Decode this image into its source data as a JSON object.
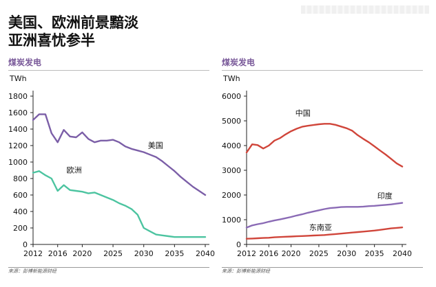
{
  "headline": {
    "line1": "美国、欧洲前景黯淡",
    "line2": "亚洲喜忧参半"
  },
  "chart_data": [
    {
      "type": "line",
      "title": "煤炭发电",
      "ylabel": "TWh",
      "ylim": [
        0,
        1800
      ],
      "yticks": [
        0,
        200,
        400,
        600,
        800,
        1000,
        1200,
        1400,
        1600,
        1800
      ],
      "xlim": [
        2012,
        2040
      ],
      "xticks": [
        2012,
        2016,
        2020,
        2025,
        2030,
        2035,
        2040
      ],
      "grid": false,
      "source": "来源：彭博新能源财经",
      "series": [
        {
          "name": "美国",
          "color": "#7b5ea7",
          "x": [
            2012,
            2013,
            2014,
            2015,
            2016,
            2017,
            2018,
            2019,
            2020,
            2021,
            2022,
            2023,
            2024,
            2025,
            2026,
            2027,
            2028,
            2029,
            2030,
            2031,
            2032,
            2033,
            2034,
            2035,
            2036,
            2037,
            2038,
            2039,
            2040
          ],
          "values": [
            1510,
            1580,
            1580,
            1350,
            1240,
            1390,
            1310,
            1300,
            1360,
            1280,
            1240,
            1260,
            1260,
            1270,
            1240,
            1190,
            1160,
            1140,
            1120,
            1090,
            1060,
            1010,
            950,
            890,
            820,
            760,
            700,
            650,
            600
          ]
        },
        {
          "name": "欧洲",
          "color": "#4cc4a0",
          "x": [
            2012,
            2013,
            2014,
            2015,
            2016,
            2017,
            2018,
            2019,
            2020,
            2021,
            2022,
            2023,
            2024,
            2025,
            2026,
            2027,
            2028,
            2029,
            2030,
            2031,
            2032,
            2033,
            2034,
            2035,
            2036,
            2037,
            2038,
            2039,
            2040
          ],
          "values": [
            870,
            890,
            840,
            800,
            650,
            720,
            660,
            650,
            640,
            620,
            630,
            600,
            570,
            540,
            500,
            470,
            430,
            360,
            200,
            160,
            120,
            110,
            100,
            90,
            90,
            90,
            90,
            90,
            90
          ]
        }
      ]
    },
    {
      "type": "line",
      "title": "煤炭发电",
      "ylabel": "TWh",
      "ylim": [
        0,
        6000
      ],
      "yticks": [
        0,
        1000,
        2000,
        3000,
        4000,
        5000,
        6000
      ],
      "xlim": [
        2012,
        2040
      ],
      "xticks": [
        2012,
        2016,
        2020,
        2025,
        2030,
        2035,
        2040
      ],
      "grid": false,
      "source": "来源：彭博新能源财经",
      "series": [
        {
          "name": "中国",
          "color": "#d0453a",
          "x": [
            2012,
            2013,
            2014,
            2015,
            2016,
            2017,
            2018,
            2019,
            2020,
            2021,
            2022,
            2023,
            2024,
            2025,
            2026,
            2027,
            2028,
            2029,
            2030,
            2031,
            2032,
            2033,
            2034,
            2035,
            2036,
            2037,
            2038,
            2039,
            2040
          ],
          "values": [
            3720,
            4050,
            4020,
            3880,
            4000,
            4200,
            4300,
            4450,
            4580,
            4680,
            4760,
            4800,
            4830,
            4860,
            4880,
            4880,
            4840,
            4770,
            4700,
            4600,
            4420,
            4270,
            4130,
            3970,
            3800,
            3640,
            3460,
            3280,
            3150
          ]
        },
        {
          "name": "印度",
          "color": "#8a6ab5",
          "x": [
            2012,
            2013,
            2014,
            2015,
            2016,
            2017,
            2018,
            2019,
            2020,
            2021,
            2022,
            2023,
            2024,
            2025,
            2026,
            2027,
            2028,
            2029,
            2030,
            2031,
            2032,
            2033,
            2034,
            2035,
            2036,
            2037,
            2038,
            2039,
            2040
          ],
          "values": [
            680,
            770,
            820,
            860,
            920,
            970,
            1010,
            1060,
            1110,
            1170,
            1220,
            1280,
            1330,
            1380,
            1430,
            1470,
            1490,
            1510,
            1520,
            1520,
            1520,
            1530,
            1550,
            1560,
            1580,
            1600,
            1620,
            1650,
            1680
          ]
        },
        {
          "name": "东南亚",
          "color": "#d0453a",
          "x": [
            2012,
            2013,
            2014,
            2015,
            2016,
            2017,
            2018,
            2019,
            2020,
            2021,
            2022,
            2023,
            2024,
            2025,
            2026,
            2027,
            2028,
            2029,
            2030,
            2031,
            2032,
            2033,
            2034,
            2035,
            2036,
            2037,
            2038,
            2039,
            2040
          ],
          "values": [
            230,
            240,
            250,
            260,
            270,
            290,
            300,
            310,
            320,
            330,
            340,
            350,
            360,
            370,
            380,
            400,
            420,
            440,
            460,
            480,
            500,
            520,
            540,
            560,
            590,
            620,
            650,
            670,
            690
          ]
        }
      ]
    }
  ]
}
